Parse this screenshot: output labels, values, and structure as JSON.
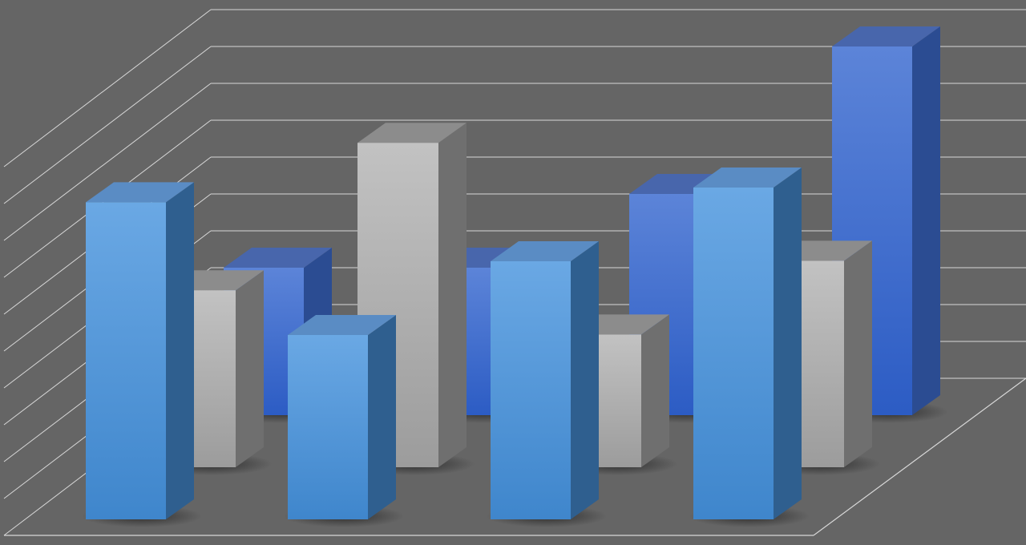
{
  "chart_data": {
    "type": "bar",
    "variant": "3d-clustered-rows",
    "title": "",
    "xlabel": "",
    "ylabel": "",
    "categories": [
      "",
      "",
      "",
      ""
    ],
    "ylim": [
      0,
      10
    ],
    "grid": true,
    "legend": "none",
    "series": [
      {
        "row": "back",
        "color": "#3f6fd0",
        "values": [
          4.0,
          4.0,
          6.0,
          10.0
        ]
      },
      {
        "row": "middle",
        "color": "#b0b0b0",
        "values": [
          4.8,
          8.8,
          3.6,
          5.6
        ]
      },
      {
        "row": "front",
        "color": "#5a9ee0",
        "values": [
          8.6,
          5.0,
          7.0,
          9.0
        ]
      }
    ],
    "background_color": "#656565",
    "gridline_color": "#d8d8d8"
  }
}
